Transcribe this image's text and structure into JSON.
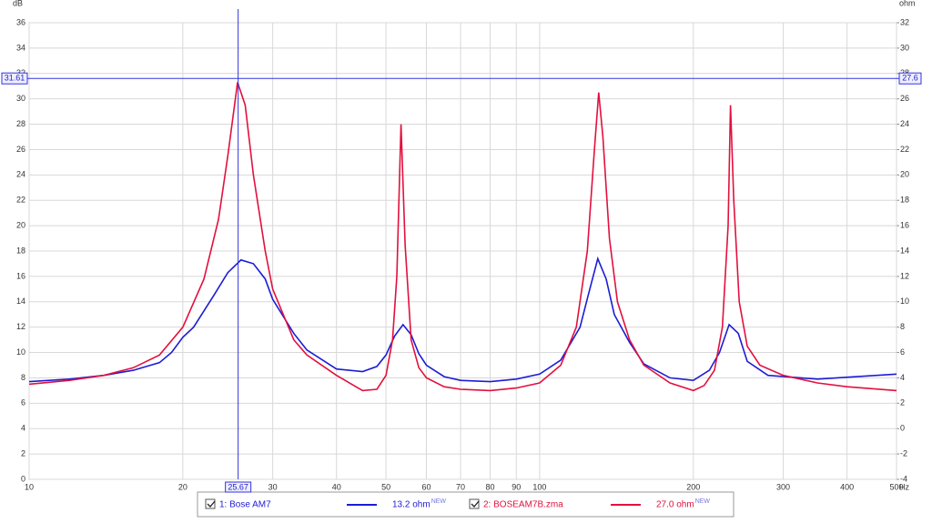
{
  "chart_data": {
    "type": "line",
    "xlog": true,
    "grid": true,
    "xlabel": "Hz",
    "ylabel": "dB",
    "y2label": "ohm",
    "xlim": [
      10,
      500
    ],
    "xticks": [
      10,
      20,
      30,
      40,
      50,
      60,
      70,
      80,
      90,
      100,
      200,
      300,
      400,
      500
    ],
    "ylim": [
      0,
      36
    ],
    "yticks": [
      0,
      2,
      4,
      6,
      8,
      10,
      12,
      14,
      16,
      18,
      20,
      22,
      24,
      26,
      28,
      30,
      32,
      34,
      36
    ],
    "y2lim": [
      -4,
      32
    ],
    "y2ticks": [
      -4,
      -2,
      0,
      2,
      4,
      6,
      8,
      10,
      12,
      14,
      16,
      18,
      20,
      22,
      24,
      26,
      28,
      30,
      32
    ],
    "cursor": {
      "x": 25.67,
      "y": 31.61,
      "y2": 27.6
    },
    "series": [
      {
        "name": "1: Bose AM7",
        "color": "#1c1cd6",
        "legend_value": "13.2 ohm",
        "legend_badge": "NEW",
        "x": [
          10,
          12,
          14,
          16,
          18,
          19,
          20,
          21,
          23,
          24.5,
          26,
          27.5,
          29,
          30,
          33,
          35,
          40,
          45,
          48,
          50,
          52,
          54,
          56,
          58,
          60,
          65,
          70,
          80,
          90,
          100,
          110,
          120,
          125,
          130,
          135,
          140,
          150,
          160,
          180,
          200,
          215,
          225,
          235,
          245,
          255,
          280,
          350,
          500
        ],
        "values": [
          7.7,
          7.9,
          8.2,
          8.6,
          9.2,
          10.0,
          11.2,
          12.0,
          14.5,
          16.3,
          17.3,
          17.0,
          15.8,
          14.2,
          11.5,
          10.2,
          8.7,
          8.5,
          8.9,
          9.8,
          11.3,
          12.2,
          11.4,
          9.9,
          9.0,
          8.1,
          7.8,
          7.7,
          7.9,
          8.3,
          9.4,
          12.0,
          14.8,
          17.4,
          15.8,
          13.0,
          10.8,
          9.1,
          8.0,
          7.8,
          8.6,
          10.0,
          12.2,
          11.5,
          9.3,
          8.2,
          7.9,
          8.3
        ]
      },
      {
        "name": "2: BOSEAM7B.zma",
        "color": "#e2103e",
        "legend_value": "27.0 ohm",
        "legend_badge": "NEW",
        "x": [
          10,
          12,
          14,
          16,
          18,
          20,
          22,
          23.5,
          24.5,
          25.6,
          26.5,
          27.5,
          29,
          30,
          33,
          35,
          40,
          45,
          48,
          50,
          51.5,
          52.5,
          53.5,
          54.5,
          56,
          58,
          60,
          65,
          70,
          80,
          90,
          100,
          110,
          118,
          124,
          128,
          130.5,
          133,
          137,
          142,
          150,
          160,
          180,
          200,
          210,
          220,
          228,
          234,
          236.5,
          240,
          246,
          255,
          270,
          300,
          350,
          400,
          500
        ],
        "values": [
          7.5,
          7.8,
          8.2,
          8.8,
          9.8,
          12.0,
          15.8,
          20.5,
          25.5,
          31.3,
          29.5,
          24.0,
          18.0,
          15.0,
          11.0,
          9.8,
          8.2,
          7.0,
          7.1,
          8.2,
          11.0,
          16.0,
          28.0,
          18.5,
          11.0,
          8.8,
          8.0,
          7.3,
          7.1,
          7.0,
          7.2,
          7.6,
          9.0,
          12.0,
          18.0,
          26.0,
          30.5,
          27.0,
          19.0,
          14.0,
          11.0,
          9.0,
          7.6,
          7.0,
          7.4,
          8.6,
          12.0,
          20.0,
          29.5,
          22.0,
          14.0,
          10.5,
          9.0,
          8.2,
          7.6,
          7.3,
          7.0
        ]
      }
    ]
  }
}
